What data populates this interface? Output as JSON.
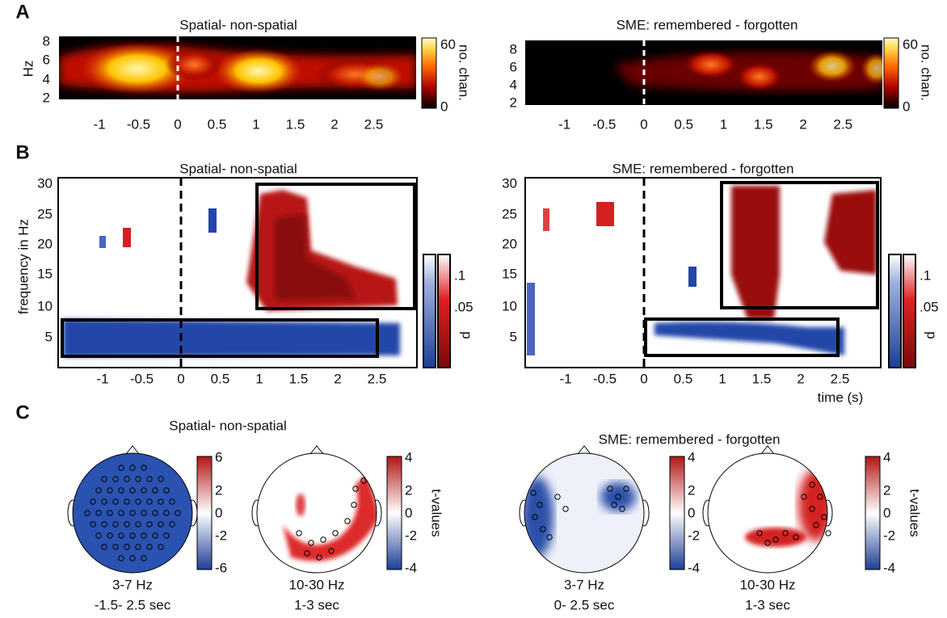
{
  "panels": {
    "A": {
      "label": "A",
      "left": {
        "title": "Spatial- non-spatial",
        "y_axis_label": "Hz",
        "yticks": [
          "2",
          "4",
          "6",
          "8"
        ],
        "xticks": [
          "-1",
          "-0.5",
          "0",
          "0.5",
          "1",
          "1.5",
          "2",
          "2.5"
        ],
        "colorbar_ticks": [
          "60",
          "0"
        ],
        "colorbar_label": "no. chan."
      },
      "right": {
        "title": "SME: remembered - forgotten",
        "yticks": [
          "2",
          "4",
          "6",
          "8"
        ],
        "xticks": [
          "-1",
          "-0.5",
          "0",
          "0.5",
          "1",
          "1.5",
          "2",
          "2.5"
        ],
        "colorbar_ticks": [
          "60",
          "0"
        ],
        "colorbar_label": "no. chan."
      }
    },
    "B": {
      "label": "B",
      "left": {
        "title": "Spatial- non-spatial",
        "y_axis_label": "frequency in Hz",
        "yticks": [
          "30",
          "25",
          "20",
          "15",
          "10",
          "5"
        ],
        "xticks": [
          "-1",
          "-0.5",
          "0",
          "0.5",
          "1",
          "1.5",
          "2",
          "2.5"
        ],
        "colorbar_ticks": [
          ".1",
          ".05"
        ],
        "colorbar_label": "p"
      },
      "right": {
        "title": "SME: remembered - forgotten",
        "yticks": [
          "30",
          "25",
          "20",
          "15",
          "10",
          "5"
        ],
        "xticks": [
          "-1",
          "-0.5",
          "0",
          "0.5",
          "1",
          "1.5",
          "2",
          "2.5"
        ],
        "colorbar_ticks": [
          ".1",
          ".05"
        ],
        "colorbar_label": "p",
        "x_axis_label": "time (s)"
      }
    },
    "C": {
      "label": "C",
      "left": {
        "title": "Spatial- non-spatial",
        "maps": [
          {
            "colorbar_ticks": [
              "6",
              "2",
              "0",
              "-2",
              "-6"
            ],
            "caption": [
              "3-7 Hz",
              "-1.5- 2.5 sec"
            ]
          },
          {
            "colorbar_ticks": [
              "4",
              "2",
              "0",
              "-2",
              "-4"
            ],
            "caption": [
              "10-30 Hz",
              "1-3 sec"
            ],
            "colorbar_label": "t-values"
          }
        ]
      },
      "right": {
        "title": "SME: remembered - forgotten",
        "maps": [
          {
            "colorbar_ticks": [
              "4",
              "2",
              "0",
              "-2",
              "-4"
            ],
            "caption": [
              "3-7 Hz",
              "0- 2.5 sec"
            ]
          },
          {
            "colorbar_ticks": [
              "4",
              "2",
              "0",
              "-2",
              "-4"
            ],
            "caption": [
              "10-30 Hz",
              "1-3 sec"
            ],
            "colorbar_label": "t-values"
          }
        ]
      }
    }
  }
}
